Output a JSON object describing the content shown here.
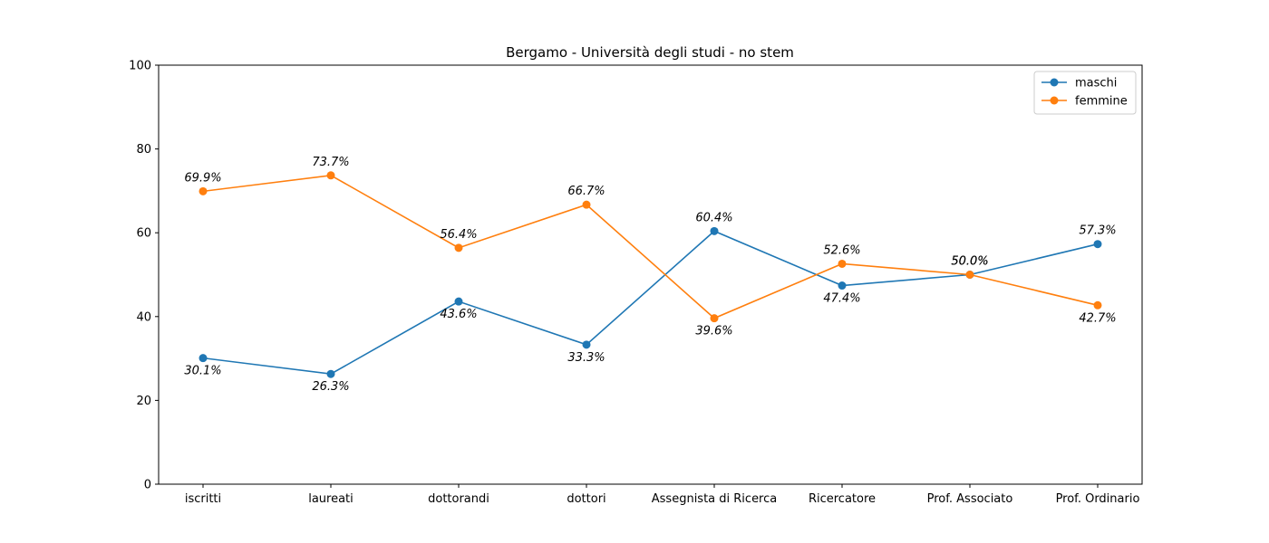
{
  "chart_data": {
    "type": "line",
    "title": "Bergamo - Università degli studi - no stem",
    "xlabel": "",
    "ylabel": "",
    "categories": [
      "iscritti",
      "laureati",
      "dottorandi",
      "dottori",
      "Assegnista di Ricerca",
      "Ricercatore",
      "Prof. Associato",
      "Prof. Ordinario"
    ],
    "ylim": [
      0,
      100
    ],
    "yticks": [
      0,
      20,
      40,
      60,
      80,
      100
    ],
    "grid": false,
    "legend_position": "top-right",
    "series": [
      {
        "name": "maschi",
        "color": "#1f77b4",
        "values": [
          30.1,
          26.3,
          43.6,
          33.3,
          60.4,
          47.4,
          50.0,
          57.3
        ],
        "labels": [
          "30.1%",
          "26.3%",
          "43.6%",
          "33.3%",
          "60.4%",
          "47.4%",
          "50.0%",
          "57.3%"
        ]
      },
      {
        "name": "femmine",
        "color": "#ff7f0e",
        "values": [
          69.9,
          73.7,
          56.4,
          66.7,
          39.6,
          52.6,
          50.0,
          42.7
        ],
        "labels": [
          "69.9%",
          "73.7%",
          "56.4%",
          "66.7%",
          "39.6%",
          "52.6%",
          "50.0%",
          "42.7%"
        ]
      }
    ]
  }
}
